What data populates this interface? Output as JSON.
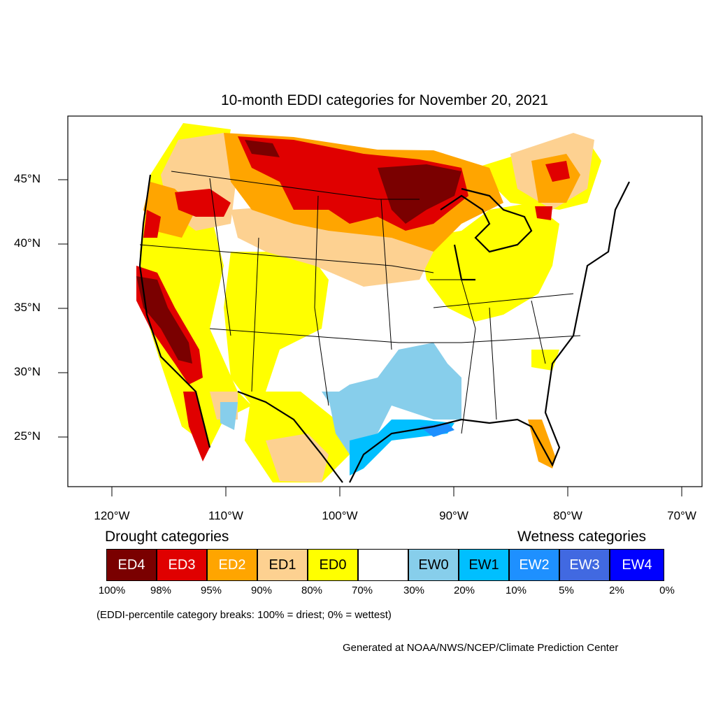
{
  "title": "10-month EDDI categories for November 20, 2021",
  "lat_labels": [
    "45°N",
    "40°N",
    "35°N",
    "30°N",
    "25°N"
  ],
  "lon_labels": [
    "120°W",
    "110°W",
    "100°W",
    "90°W",
    "80°W",
    "70°W"
  ],
  "legend": {
    "drought_heading": "Drought categories",
    "wetness_heading": "Wetness categories",
    "categories": [
      {
        "label": "ED4",
        "color": "#7a0000",
        "text_color": "#ffffff"
      },
      {
        "label": "ED3",
        "color": "#e00000",
        "text_color": "#ffffff"
      },
      {
        "label": "ED2",
        "color": "#ffa500",
        "text_color": "#ffffff"
      },
      {
        "label": "ED1",
        "color": "#fdd191",
        "text_color": "#000000"
      },
      {
        "label": "ED0",
        "color": "#ffff00",
        "text_color": "#000000"
      },
      {
        "label": "",
        "color": "#ffffff",
        "text_color": "#000000"
      },
      {
        "label": "EW0",
        "color": "#87ceeb",
        "text_color": "#000000"
      },
      {
        "label": "EW1",
        "color": "#00bfff",
        "text_color": "#000000"
      },
      {
        "label": "EW2",
        "color": "#1e90ff",
        "text_color": "#ffffff"
      },
      {
        "label": "EW3",
        "color": "#4169e1",
        "text_color": "#ffffff"
      },
      {
        "label": "EW4",
        "color": "#0000ff",
        "text_color": "#ffffff"
      }
    ],
    "breaks": [
      "100%",
      "98%",
      "95%",
      "90%",
      "80%",
      "70%",
      "30%",
      "20%",
      "10%",
      "5%",
      "2%",
      "0%"
    ]
  },
  "note": "(EDDI-percentile category breaks: 100% = driest; 0% = wettest)",
  "credit": "Generated at NOAA/NWS/NCEP/Climate Prediction Center"
}
